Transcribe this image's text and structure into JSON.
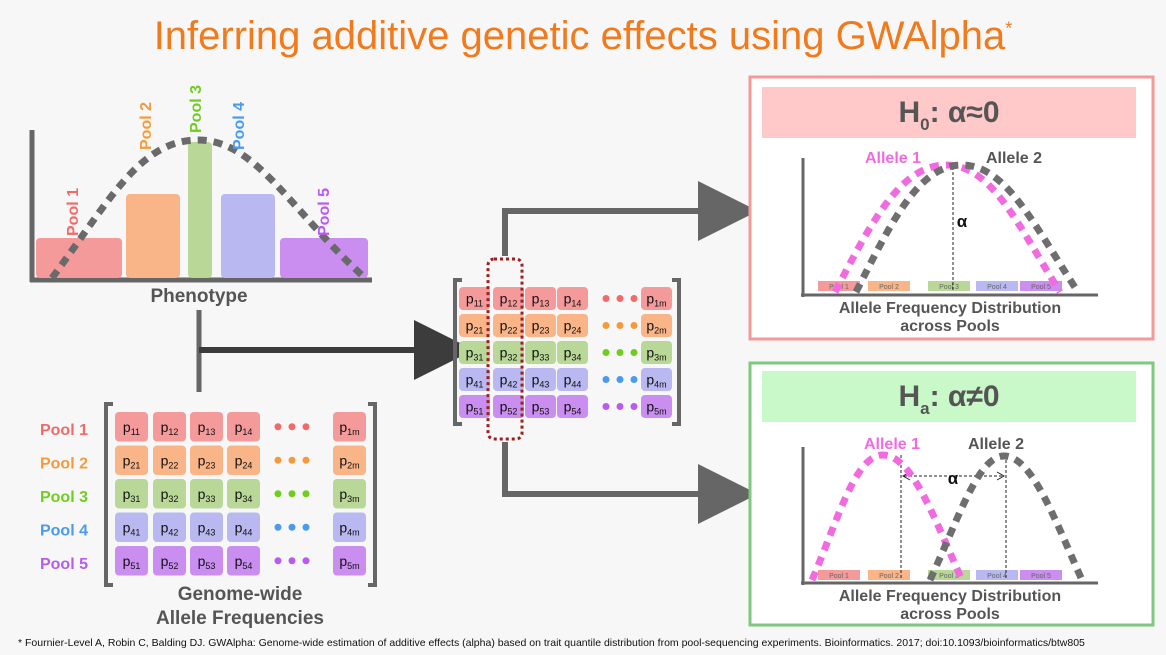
{
  "title": {
    "main": "Inferring additive genetic effects using GWAlpha",
    "marker": "*"
  },
  "colors": {
    "title": "#f07a1c",
    "pools": [
      "#f59a9a",
      "#f9b487",
      "#b9d897",
      "#b9b8f1",
      "#c98ef0"
    ],
    "pool_labels": [
      "#f06a6a",
      "#f59a3c",
      "#6fce1d",
      "#4a9af0",
      "#b95af0"
    ],
    "allele1": "#f26ae0",
    "allele2": "#6e6e6e",
    "h0_border": "#f09a9a",
    "h0_header": "#ffc9c9",
    "ha_border": "#7ec97e",
    "ha_header": "#c9f9c9"
  },
  "phenotype": {
    "pools": [
      "Pool 1",
      "Pool 2",
      "Pool 3",
      "Pool 4",
      "Pool 5"
    ],
    "label": "Phenotype"
  },
  "frequencies": {
    "pools": [
      "Pool 1",
      "Pool 2",
      "Pool 3",
      "Pool 4",
      "Pool 5"
    ],
    "label_line1": "Genome-wide",
    "label_line2": "Allele Frequencies"
  },
  "matrix": {
    "rows": [
      [
        "p",
        "11",
        "12",
        "13",
        "14",
        "1m"
      ],
      [
        "p",
        "21",
        "22",
        "23",
        "24",
        "2m"
      ],
      [
        "p",
        "31",
        "32",
        "33",
        "34",
        "3m"
      ],
      [
        "p",
        "41",
        "42",
        "43",
        "44",
        "4m"
      ],
      [
        "p",
        "51",
        "52",
        "53",
        "54",
        "5m"
      ]
    ]
  },
  "h0": {
    "symbol": "H",
    "sub": "0",
    "relation": ": α≈0",
    "allele1": "Allele 1",
    "allele2": "Allele 2",
    "alpha": "α",
    "pools": [
      "Pool 1",
      "Pool 2",
      "Pool 3",
      "Pool 4",
      "Pool 5"
    ],
    "caption_line1": "Allele Frequency Distribution",
    "caption_line2": "across Pools"
  },
  "ha": {
    "symbol": "H",
    "sub": "a",
    "relation": ": α≠0",
    "allele1": "Allele 1",
    "allele2": "Allele 2",
    "alpha": "α",
    "pools": [
      "Pool 1",
      "Pool 2",
      "Pool 3",
      "Pool 4",
      "Pool 5"
    ],
    "caption_line1": "Allele Frequency Distribution",
    "caption_line2": "across Pools"
  },
  "footnote": "* Fournier-Level A, Robin C, Balding DJ. GWAlpha: Genome-wide estimation of additive effects (alpha) based on trait quantile distribution from pool-sequencing experiments. Bioinformatics. 2017; doi:10.1093/bioinformatics/btw805"
}
